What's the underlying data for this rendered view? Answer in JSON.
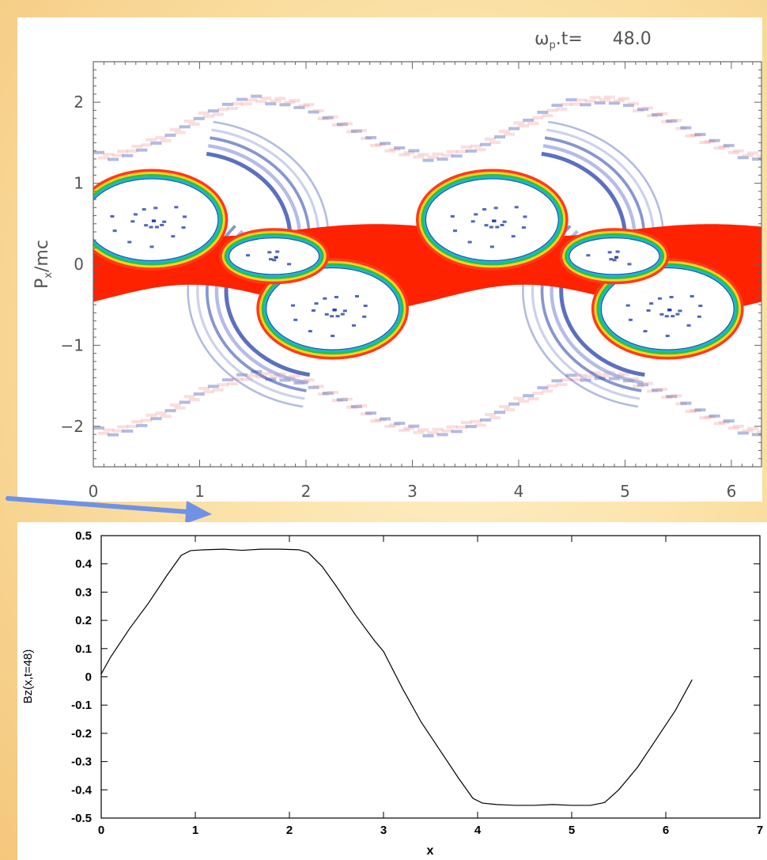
{
  "chart_data": [
    {
      "type": "heatmap",
      "title": "ω_p.t=   48.0",
      "title_prefix": "ω",
      "title_subscript": "p",
      "title_suffix": ".t=",
      "title_value": "48.0",
      "ylabel": "P",
      "ylabel_subscript": "x",
      "ylabel_suffix": "/mc",
      "xlabel": "",
      "xlim": [
        0,
        6.283
      ],
      "ylim": [
        -2.5,
        2.5
      ],
      "xticks": [
        "0",
        "1",
        "2",
        "3",
        "4",
        "5",
        "6"
      ],
      "xtick_values": [
        0,
        1,
        2,
        3,
        4,
        5,
        6
      ],
      "yticks": [
        "2",
        "1",
        "0",
        "−1",
        "−2"
      ],
      "ytick_values": [
        2,
        1,
        0,
        -1,
        -2
      ],
      "colors": {
        "core": "#ff2200",
        "arc": "#2440a8",
        "faint": "#f0a0a0",
        "ring": "#19b8d0"
      },
      "description": ""
    },
    {
      "type": "line",
      "title": "",
      "xlabel": "x",
      "ylabel": "Bz(x,t=48)",
      "xlim": [
        0,
        7
      ],
      "ylim": [
        -0.5,
        0.5
      ],
      "xticks": [
        "0",
        "1",
        "2",
        "3",
        "4",
        "5",
        "6",
        "7"
      ],
      "yticks": [
        "0.5",
        "0.4",
        "0.3",
        "0.2",
        "0.1",
        "0",
        "-0.1",
        "-0.2",
        "-0.3",
        "-0.4",
        "-0.5"
      ],
      "series": [
        {
          "x": [
            0,
            0.1,
            0.3,
            0.5,
            0.7,
            0.85,
            0.95,
            1.1,
            1.3,
            1.5,
            1.7,
            1.9,
            2.1,
            2.2,
            2.35,
            2.5,
            2.7,
            2.9,
            3.0,
            3.2,
            3.4,
            3.6,
            3.8,
            3.95,
            4.05,
            4.2,
            4.4,
            4.6,
            4.8,
            5.0,
            5.2,
            5.35,
            5.5,
            5.7,
            5.9,
            6.1,
            6.28
          ],
          "y": [
            0.01,
            0.07,
            0.17,
            0.26,
            0.36,
            0.43,
            0.447,
            0.45,
            0.452,
            0.448,
            0.452,
            0.452,
            0.45,
            0.44,
            0.39,
            0.32,
            0.22,
            0.13,
            0.09,
            -0.04,
            -0.16,
            -0.26,
            -0.36,
            -0.43,
            -0.447,
            -0.452,
            -0.455,
            -0.455,
            -0.452,
            -0.455,
            -0.455,
            -0.445,
            -0.4,
            -0.32,
            -0.22,
            -0.12,
            -0.01
          ]
        }
      ]
    }
  ]
}
